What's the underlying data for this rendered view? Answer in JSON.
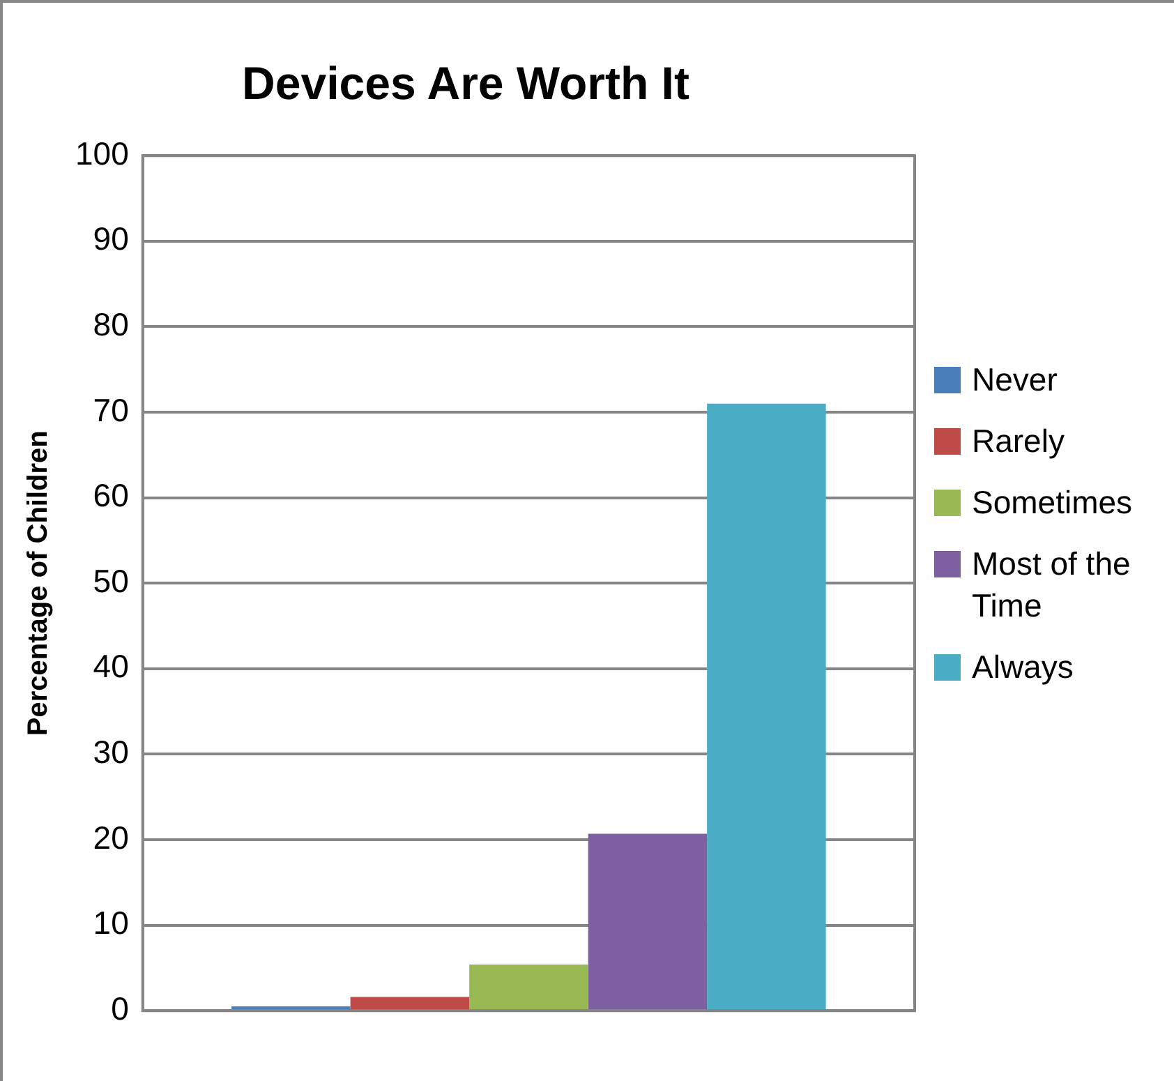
{
  "chart_data": {
    "type": "bar",
    "title": "Devices Are Worth It",
    "ylabel": "Percentage of Children",
    "categories": [
      null
    ],
    "series": [
      {
        "name": "Never",
        "color": "#4a7ebb",
        "values": [
          0.5
        ]
      },
      {
        "name": "Rarely",
        "color": "#be4b48",
        "values": [
          1.6
        ]
      },
      {
        "name": "Sometimes",
        "color": "#98b954",
        "values": [
          5.4
        ]
      },
      {
        "name": "Most of the Time",
        "color": "#7d60a0",
        "values": [
          20.7
        ]
      },
      {
        "name": "Always",
        "color": "#4bacc6",
        "values": [
          71
        ]
      }
    ],
    "ylim": [
      0,
      100
    ],
    "yticks": [
      0,
      10,
      20,
      30,
      40,
      50,
      60,
      70,
      80,
      90,
      100
    ],
    "grid": "y",
    "legend": "right"
  }
}
